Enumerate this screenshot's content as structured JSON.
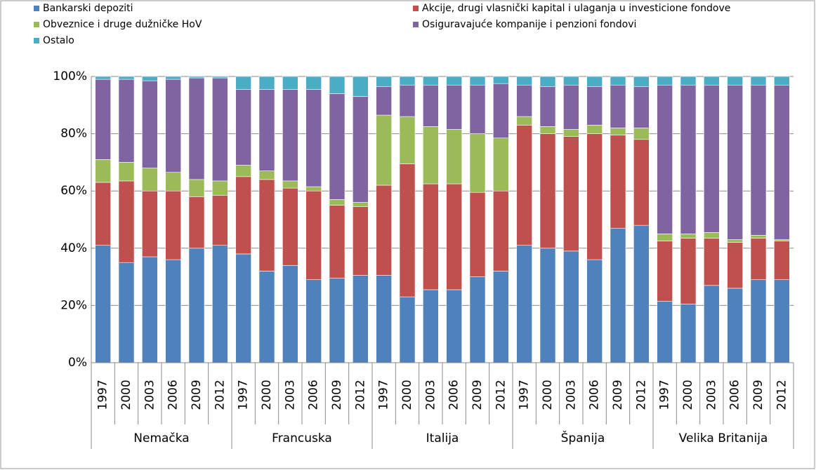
{
  "chart_data": {
    "type": "stacked_bar",
    "categories": [
      "1997",
      "2000",
      "2003",
      "2006",
      "2009",
      "2012",
      "1997",
      "2000",
      "2003",
      "2006",
      "2009",
      "2012",
      "1997",
      "2000",
      "2003",
      "2006",
      "2009",
      "2012",
      "1997",
      "2000",
      "2003",
      "2006",
      "2009",
      "2012",
      "1997",
      "2000",
      "2003",
      "2006",
      "2009",
      "2012"
    ],
    "groups": [
      "Nemačka",
      "Francuska",
      "Italija",
      "Španija",
      "Velika Britanija"
    ],
    "series": [
      {
        "name": "Bankarski depoziti",
        "color": "#4f81bd",
        "values": [
          41,
          35,
          37,
          36,
          40,
          41,
          38,
          32,
          34,
          29,
          29.5,
          30.5,
          30.5,
          23,
          25.5,
          25.5,
          30,
          32,
          41,
          40,
          39,
          36,
          47,
          48,
          21.5,
          20.5,
          27,
          26,
          29,
          29
        ]
      },
      {
        "name": "Akcije, drugi vlasnički kapital i ulaganja u investicione fondove",
        "color": "#c0504d",
        "values": [
          22,
          28.5,
          23,
          24,
          18,
          17.5,
          27,
          32,
          27,
          31,
          25.5,
          24,
          31.5,
          46.5,
          37,
          37,
          29.5,
          28,
          42,
          40,
          40,
          44,
          32.5,
          30,
          21,
          23,
          16.5,
          16,
          14.5,
          13.5
        ]
      },
      {
        "name": "Obveznice i druge dužničke HoV",
        "color": "#9bbb59",
        "values": [
          8,
          6.5,
          8,
          6.5,
          6,
          5,
          4,
          3,
          2.5,
          1.5,
          2,
          1.5,
          24.5,
          16.5,
          20,
          19,
          20.5,
          18.5,
          3,
          2.5,
          2.5,
          3,
          2.5,
          4,
          2.5,
          1.5,
          2,
          1,
          1,
          0.5
        ]
      },
      {
        "name": "Osiguravajuće kompanije i penzioni fondovi",
        "color": "#8064a2",
        "values": [
          28,
          29,
          30.5,
          32.5,
          35.5,
          36,
          26.5,
          28.5,
          32,
          34,
          37,
          37,
          10,
          11,
          14.5,
          15.5,
          17,
          19,
          11,
          14,
          15.5,
          13.5,
          15,
          14.5,
          52,
          52,
          51.5,
          54,
          52.5,
          54
        ]
      },
      {
        "name": "Ostalo",
        "color": "#4bacc6",
        "values": [
          1,
          1,
          1.5,
          1,
          0.5,
          0.5,
          4.5,
          4.5,
          4.5,
          4.5,
          6,
          7,
          3.5,
          3,
          3,
          3,
          3,
          2.5,
          3,
          3.5,
          3,
          3.5,
          3,
          3.5,
          3,
          3,
          3,
          3,
          3,
          3
        ]
      }
    ],
    "ylim": [
      0,
      100
    ],
    "yticks": [
      {
        "value": 0,
        "label": "0%"
      },
      {
        "value": 20,
        "label": "20%"
      },
      {
        "value": 40,
        "label": "40%"
      },
      {
        "value": 60,
        "label": "60%"
      },
      {
        "value": 80,
        "label": "80%"
      },
      {
        "value": 100,
        "label": "100%"
      }
    ],
    "grid": true
  }
}
